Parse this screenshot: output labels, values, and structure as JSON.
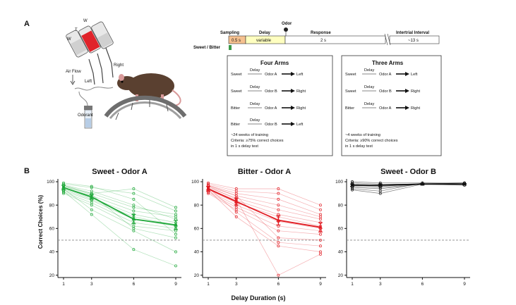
{
  "panels": {
    "a": "A",
    "b": "B"
  },
  "apparatus": {
    "labels": {
      "w1": "W",
      "t": "T",
      "w2": "W",
      "right": "Right",
      "left": "Left",
      "air_flow": "Air Flow",
      "odorant": "Odorant"
    }
  },
  "timeline": {
    "odor_label": "Odor",
    "phases": [
      {
        "name": "Sampling",
        "duration": "0.5 s",
        "color": "#f6c18f"
      },
      {
        "name": "Delay",
        "duration": "variable",
        "color": "#ffffc0"
      },
      {
        "name": "Response",
        "duration": "2 s",
        "color": "#ffffff"
      },
      {
        "name": "Intertrial Interval",
        "duration": "~13 s",
        "color": "#ffffff"
      }
    ],
    "sweet_bitter_label": "Sweet / Bitter",
    "cue_color": "#3a9a4a"
  },
  "tasks": {
    "four_arms": {
      "title": "Four Arms",
      "delay_word": "Delay",
      "rules": [
        {
          "taste": "Sweet",
          "odor": "Odor A",
          "arm": "Left"
        },
        {
          "taste": "Sweet",
          "odor": "Odor B",
          "arm": "Right"
        },
        {
          "taste": "Bitter",
          "odor": "Odor A",
          "arm": "Right"
        },
        {
          "taste": "Bitter",
          "odor": "Odor B",
          "arm": "Left"
        }
      ],
      "training_lines": [
        "~24 weeks of training",
        "Criteria: ≥75% correct choices",
        "in 1 s delay test"
      ]
    },
    "three_arms": {
      "title": "Three Arms",
      "delay_word": "Delay",
      "rules": [
        {
          "taste": "Sweet",
          "odor": "Odor A",
          "arm": "Left"
        },
        {
          "taste": "Sweet",
          "odor": "Odor B",
          "arm": "Right"
        },
        {
          "taste": "Bitter",
          "odor": "Odor A",
          "arm": "Right"
        }
      ],
      "training_lines": [
        "~4 weeks of training",
        "Criteria: ≥90% correct  choices",
        "in 1 s delay test"
      ]
    }
  },
  "axes": {
    "ylabel": "Correct Choices (%)",
    "xlabel": "Delay Duration (s)",
    "yticks": [
      "100",
      "80",
      "60",
      "40",
      "20"
    ],
    "xticks": [
      "1",
      "3",
      "6",
      "9"
    ]
  },
  "chart_data": [
    {
      "type": "line",
      "title": "Sweet - Odor A",
      "color": "#1fa83a",
      "x": [
        1,
        3,
        6,
        9
      ],
      "xlabel": "Delay Duration (s)",
      "ylabel": "Correct Choices (%)",
      "ylim": [
        18,
        100
      ],
      "chance": 50,
      "mean": [
        95,
        87,
        68,
        63
      ],
      "sem": [
        2,
        2,
        4,
        4
      ],
      "individuals": [
        [
          98,
          95,
          90,
          75
        ],
        [
          97,
          92,
          80,
          68
        ],
        [
          96,
          90,
          78,
          72
        ],
        [
          95,
          88,
          75,
          70
        ],
        [
          94,
          86,
          72,
          65
        ],
        [
          93,
          85,
          70,
          63
        ],
        [
          92,
          84,
          68,
          62
        ],
        [
          91,
          82,
          65,
          60
        ],
        [
          90,
          80,
          62,
          58
        ],
        [
          99,
          96,
          85,
          55
        ],
        [
          96,
          89,
          60,
          52
        ],
        [
          94,
          76,
          58,
          40
        ],
        [
          92,
          72,
          42,
          28
        ],
        [
          97,
          90,
          94,
          78
        ]
      ]
    },
    {
      "type": "line",
      "title": "Bitter - Odor A",
      "color": "#e11b22",
      "x": [
        1,
        3,
        6,
        9
      ],
      "xlabel": "Delay Duration (s)",
      "ylabel": "Correct Choices (%)",
      "ylim": [
        18,
        100
      ],
      "chance": 50,
      "mean": [
        94,
        83,
        67,
        61
      ],
      "sem": [
        2,
        3,
        4,
        4
      ],
      "individuals": [
        [
          98,
          92,
          90,
          76
        ],
        [
          97,
          90,
          85,
          72
        ],
        [
          96,
          88,
          80,
          70
        ],
        [
          95,
          86,
          76,
          68
        ],
        [
          94,
          84,
          72,
          65
        ],
        [
          93,
          82,
          70,
          62
        ],
        [
          92,
          80,
          66,
          60
        ],
        [
          91,
          78,
          62,
          58
        ],
        [
          90,
          76,
          58,
          55
        ],
        [
          97,
          88,
          52,
          50
        ],
        [
          95,
          74,
          48,
          45
        ],
        [
          93,
          70,
          45,
          40
        ],
        [
          96,
          85,
          20,
          38
        ],
        [
          99,
          94,
          94,
          80
        ]
      ]
    },
    {
      "type": "line",
      "title": "Sweet - Odor B",
      "color": "#111111",
      "x": [
        1,
        3,
        6,
        9
      ],
      "xlabel": "Delay Duration (s)",
      "ylabel": "Correct Choices (%)",
      "ylim": [
        18,
        100
      ],
      "chance": 50,
      "mean": [
        97,
        97,
        98,
        98
      ],
      "sem": [
        1,
        1,
        0.5,
        0.5
      ],
      "individuals": [
        [
          100,
          99,
          99,
          99
        ],
        [
          99,
          98,
          98,
          98
        ],
        [
          98,
          97,
          98,
          99
        ],
        [
          97,
          96,
          98,
          98
        ],
        [
          96,
          95,
          98,
          97
        ],
        [
          95,
          94,
          98,
          98
        ],
        [
          94,
          92,
          99,
          98
        ],
        [
          93,
          90,
          98,
          99
        ]
      ]
    }
  ]
}
